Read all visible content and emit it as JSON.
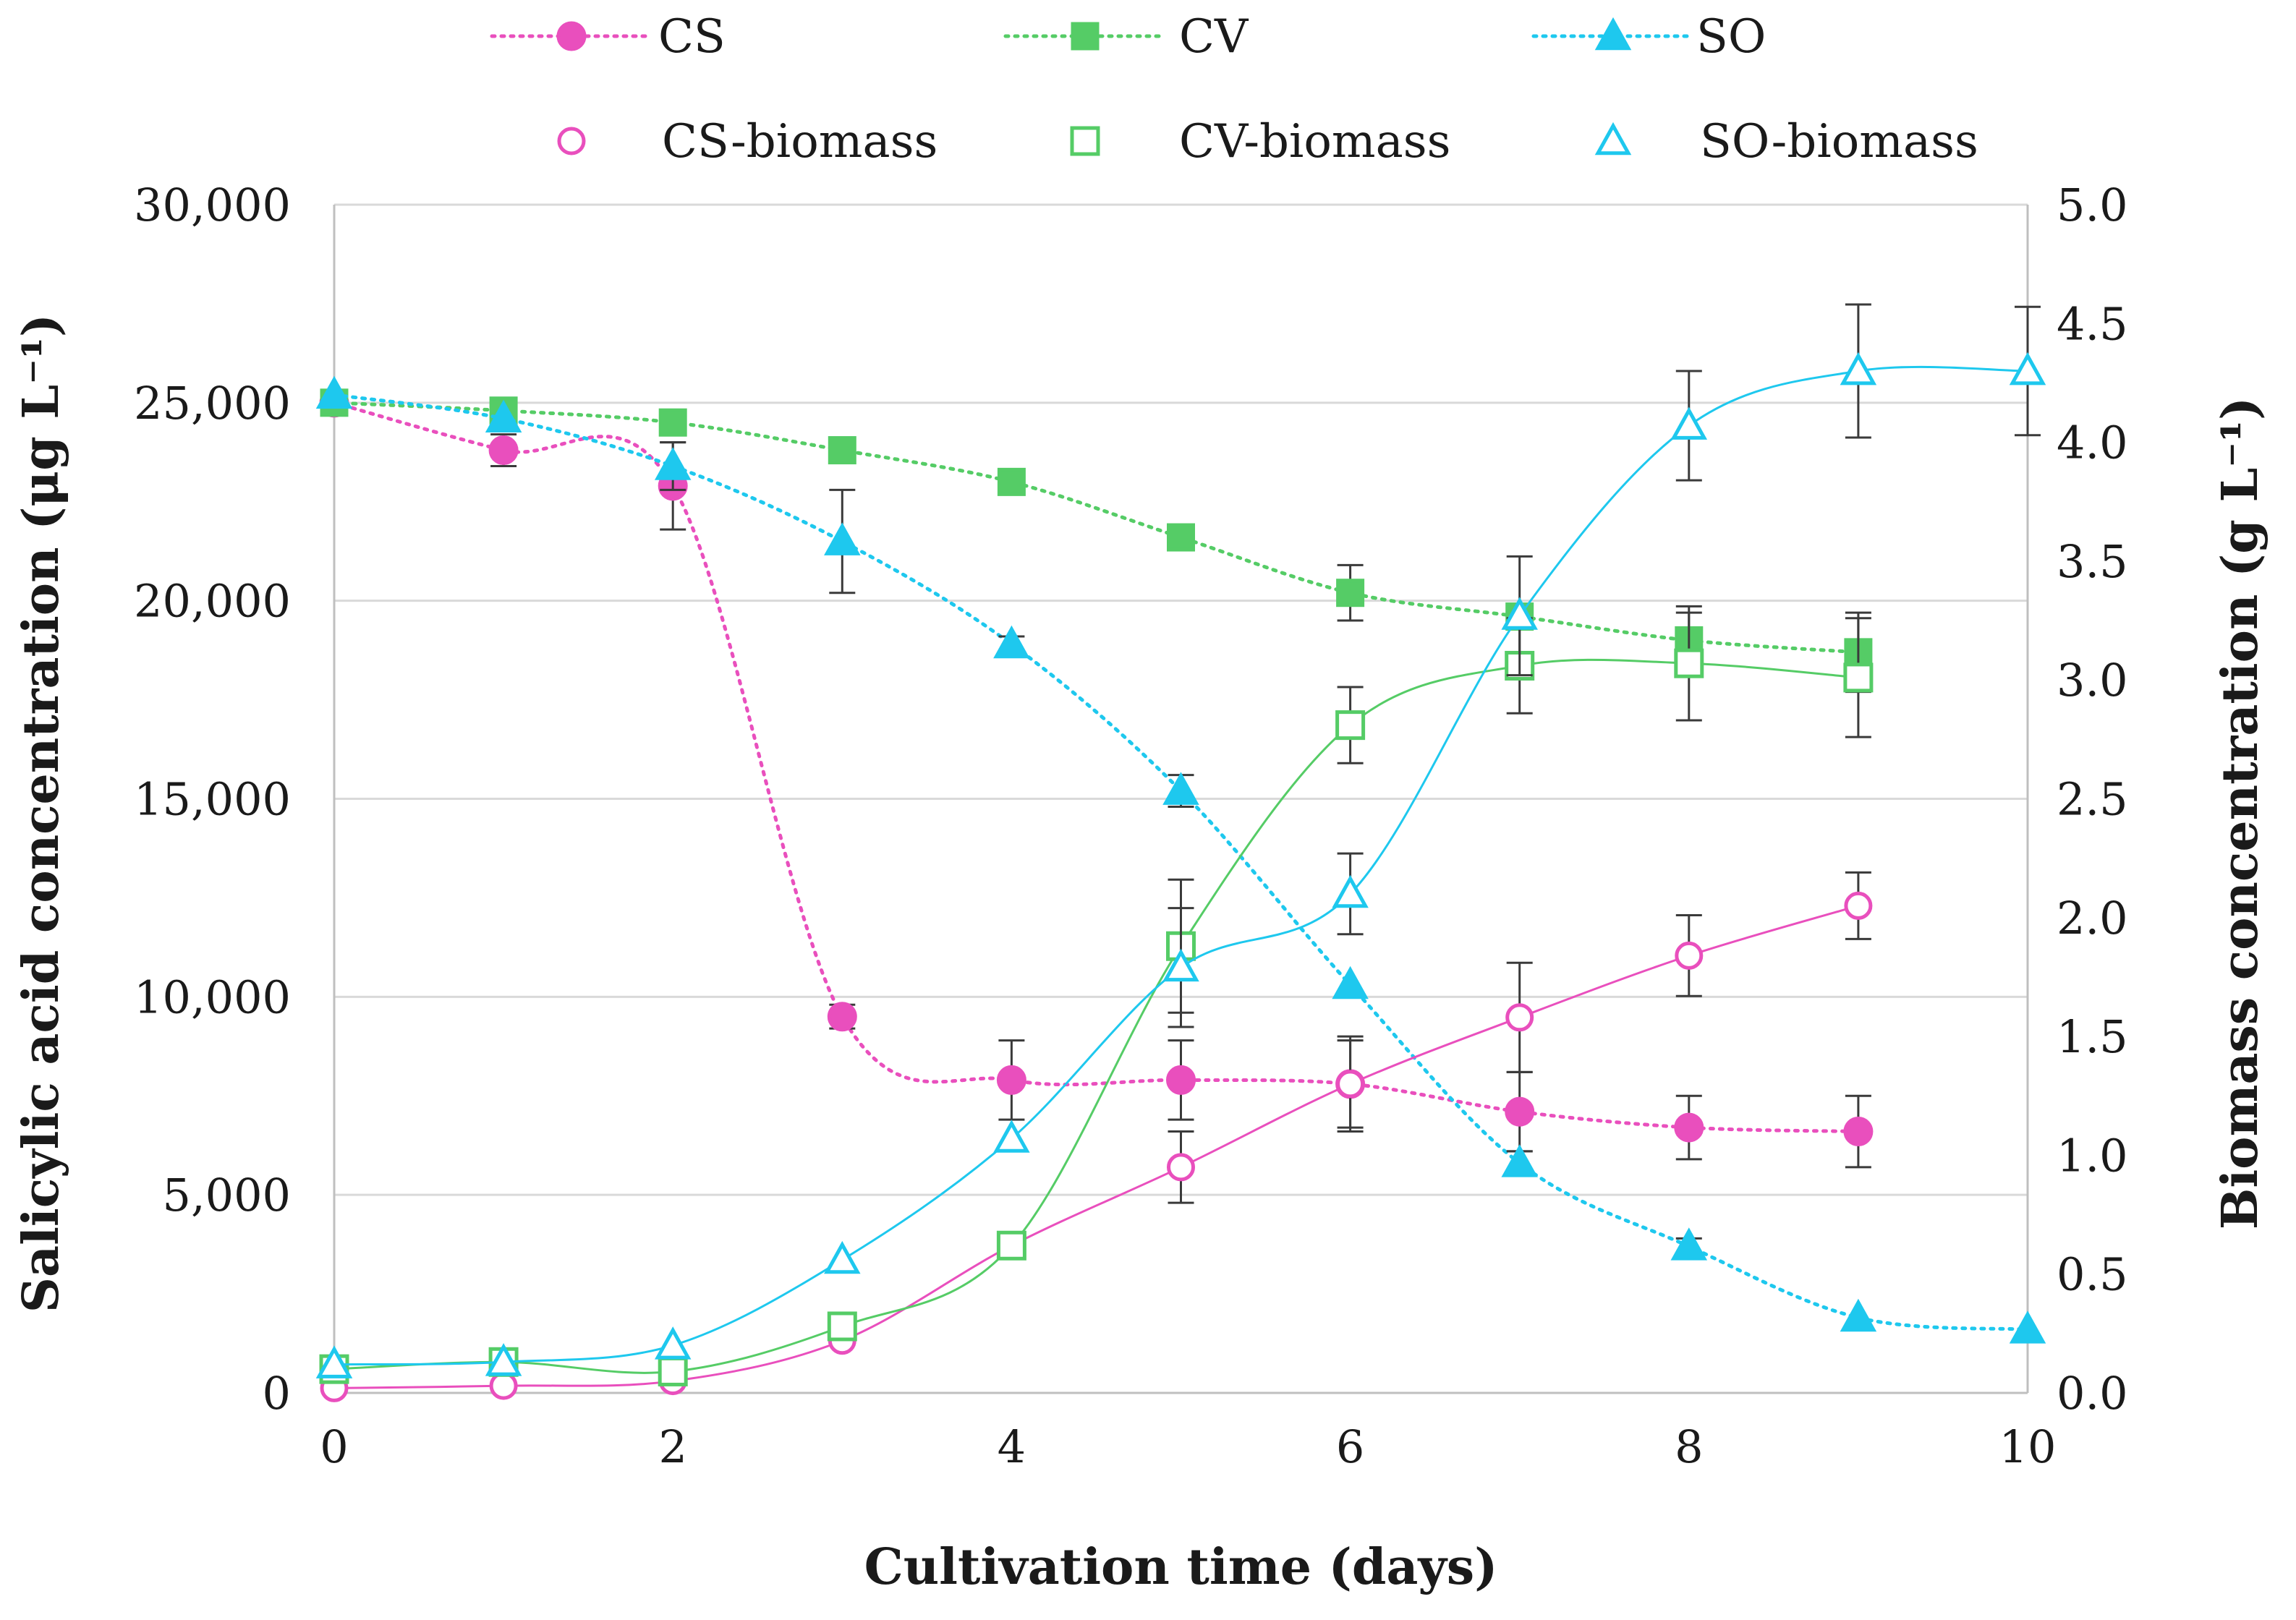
{
  "chart_data": {
    "type": "line",
    "title": "",
    "xlabel": "Cultivation time (days)",
    "ylabel_left": "Salicylic acid concentration (μg L⁻¹)",
    "ylabel_right": "Biomass concentration (g L⁻¹)",
    "xlim": [
      0,
      10
    ],
    "ylim_left": [
      0,
      30000
    ],
    "ylim_right": [
      0,
      5
    ],
    "x_ticks": [
      "0",
      "2",
      "4",
      "6",
      "8",
      "10"
    ],
    "y_left_ticks": [
      "0",
      "5,000",
      "10,000",
      "15,000",
      "20,000",
      "25,000",
      "30,000"
    ],
    "y_right_ticks": [
      "0.0",
      "0.5",
      "1.0",
      "1.5",
      "2.0",
      "2.5",
      "3.0",
      "3.5",
      "4.0",
      "4.5",
      "5.0"
    ],
    "grid": "horizontal",
    "legend_position": "top",
    "series": [
      {
        "name": "CS",
        "axis": "left",
        "marker": "circle-filled",
        "line": "dotted",
        "color": "#e94fbd",
        "x": [
          0,
          1,
          2,
          3,
          4,
          5,
          6,
          7,
          8,
          9
        ],
        "values": [
          25000,
          23800,
          22900,
          9500,
          7900,
          7900,
          7800,
          7100,
          6700,
          6600
        ],
        "errors": [
          0,
          400,
          1100,
          300,
          1000,
          1000,
          1100,
          1000,
          800,
          900
        ]
      },
      {
        "name": "CV",
        "axis": "left",
        "marker": "square-filled",
        "line": "dotted",
        "color": "#55cc66",
        "x": [
          0,
          1,
          2,
          3,
          4,
          5,
          6,
          7,
          8,
          9
        ],
        "values": [
          25000,
          24800,
          24500,
          23800,
          23000,
          21600,
          20200,
          19600,
          19000,
          18700
        ],
        "errors": [
          0,
          0,
          0,
          0,
          0,
          300,
          700,
          0,
          700,
          1000
        ]
      },
      {
        "name": "SO",
        "axis": "left",
        "marker": "triangle-filled",
        "line": "dotted",
        "color": "#1ec8ee",
        "x": [
          0,
          1,
          2,
          3,
          4,
          5,
          6,
          7,
          8,
          9,
          10
        ],
        "values": [
          25200,
          24600,
          23400,
          21500,
          18900,
          15200,
          10300,
          5800,
          3700,
          1900,
          1600
        ],
        "errors": [
          0,
          0,
          600,
          1300,
          200,
          400,
          0,
          300,
          200,
          0,
          0
        ]
      },
      {
        "name": "CS-biomass",
        "axis": "right",
        "marker": "circle-open",
        "line": "fit",
        "color": "#e94fbd",
        "x": [
          0,
          1,
          2,
          3,
          4,
          5,
          6,
          7,
          8,
          9
        ],
        "values": [
          0.02,
          0.03,
          0.05,
          0.22,
          0.62,
          0.95,
          1.3,
          1.58,
          1.84,
          2.05
        ],
        "errors": [
          0,
          0,
          0,
          0,
          0,
          0.15,
          0.2,
          0.23,
          0.17,
          0.14
        ]
      },
      {
        "name": "CV-biomass",
        "axis": "right",
        "marker": "square-open",
        "line": "fit",
        "color": "#55cc66",
        "x": [
          0,
          1,
          2,
          3,
          4,
          5,
          6,
          7,
          8,
          9
        ],
        "values": [
          0.1,
          0.13,
          0.09,
          0.28,
          0.62,
          1.88,
          2.81,
          3.06,
          3.07,
          3.01
        ],
        "errors": [
          0,
          0,
          0,
          0,
          0,
          0.28,
          0.16,
          0.2,
          0.24,
          0.25
        ]
      },
      {
        "name": "SO-biomass",
        "axis": "right",
        "marker": "triangle-open",
        "line": "fit",
        "color": "#1ec8ee",
        "x": [
          0,
          1,
          2,
          3,
          4,
          5,
          6,
          7,
          8,
          9,
          10
        ],
        "values": [
          0.12,
          0.13,
          0.2,
          0.56,
          1.07,
          1.79,
          2.1,
          3.27,
          4.07,
          4.3,
          4.3
        ],
        "errors": [
          0,
          0,
          0,
          0,
          0,
          0.25,
          0.17,
          0.25,
          0.23,
          0.28,
          0.27
        ]
      }
    ]
  }
}
